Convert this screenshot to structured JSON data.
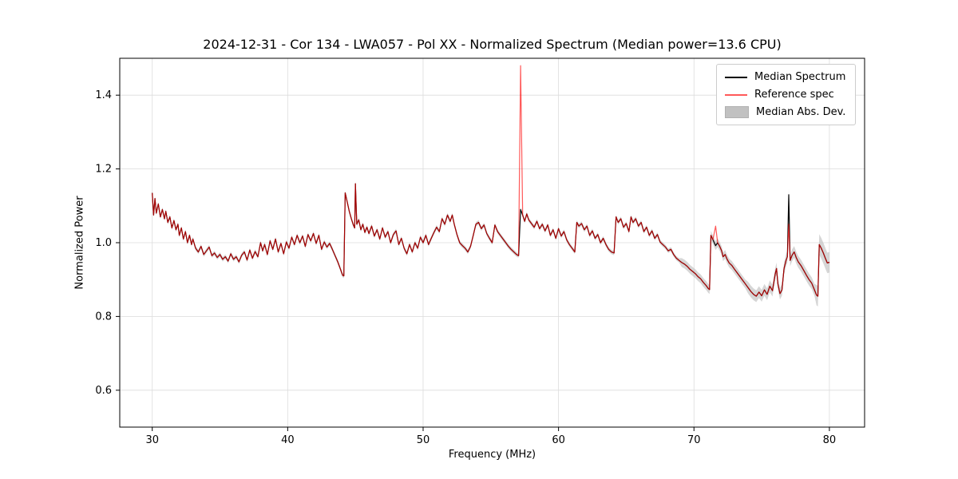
{
  "chart_data": {
    "type": "line",
    "title": "2024-12-31 - Cor 134 - LWA057 - Pol XX - Normalized Spectrum (Median power=13.6 CPU)",
    "xlabel": "Frequency (MHz)",
    "ylabel": "Normalized Power",
    "xlim": [
      27.6,
      82.6
    ],
    "ylim": [
      0.5,
      1.5
    ],
    "xticks": [
      30,
      40,
      50,
      60,
      70,
      80
    ],
    "yticks": [
      0.6,
      0.8,
      1.0,
      1.2,
      1.4
    ],
    "grid": true,
    "legend_position": "upper right",
    "colors": {
      "median": "#000000",
      "reference": "#ff0000",
      "reference_opacity": 0.65,
      "band": "#bbbbbb",
      "band_opacity": 0.6,
      "grid": "#dcdcdc",
      "frame": "#000000"
    },
    "series": [
      {
        "name": "Median Spectrum",
        "color": "#000000",
        "points": [
          [
            30.0,
            1.135
          ],
          [
            30.1,
            1.075
          ],
          [
            30.2,
            1.12
          ],
          [
            30.3,
            1.08
          ],
          [
            30.45,
            1.105
          ],
          [
            30.6,
            1.07
          ],
          [
            30.75,
            1.09
          ],
          [
            30.9,
            1.065
          ],
          [
            31.0,
            1.085
          ],
          [
            31.15,
            1.055
          ],
          [
            31.3,
            1.07
          ],
          [
            31.45,
            1.04
          ],
          [
            31.6,
            1.06
          ],
          [
            31.75,
            1.035
          ],
          [
            31.9,
            1.05
          ],
          [
            32.0,
            1.02
          ],
          [
            32.15,
            1.04
          ],
          [
            32.3,
            1.01
          ],
          [
            32.45,
            1.03
          ],
          [
            32.6,
            1.0
          ],
          [
            32.75,
            1.02
          ],
          [
            32.9,
            0.995
          ],
          [
            33.0,
            1.01
          ],
          [
            33.2,
            0.985
          ],
          [
            33.4,
            0.975
          ],
          [
            33.6,
            0.99
          ],
          [
            33.8,
            0.968
          ],
          [
            34.0,
            0.978
          ],
          [
            34.2,
            0.988
          ],
          [
            34.4,
            0.965
          ],
          [
            34.6,
            0.972
          ],
          [
            34.8,
            0.96
          ],
          [
            35.0,
            0.968
          ],
          [
            35.2,
            0.955
          ],
          [
            35.4,
            0.962
          ],
          [
            35.6,
            0.95
          ],
          [
            35.8,
            0.97
          ],
          [
            36.0,
            0.955
          ],
          [
            36.2,
            0.962
          ],
          [
            36.4,
            0.948
          ],
          [
            36.6,
            0.966
          ],
          [
            36.8,
            0.975
          ],
          [
            37.0,
            0.953
          ],
          [
            37.2,
            0.98
          ],
          [
            37.4,
            0.958
          ],
          [
            37.6,
            0.976
          ],
          [
            37.8,
            0.962
          ],
          [
            38.0,
            1.0
          ],
          [
            38.15,
            0.978
          ],
          [
            38.3,
            0.995
          ],
          [
            38.5,
            0.968
          ],
          [
            38.7,
            1.005
          ],
          [
            38.9,
            0.982
          ],
          [
            39.1,
            1.01
          ],
          [
            39.3,
            0.975
          ],
          [
            39.5,
            0.998
          ],
          [
            39.7,
            0.97
          ],
          [
            39.9,
            1.002
          ],
          [
            40.1,
            0.985
          ],
          [
            40.3,
            1.015
          ],
          [
            40.5,
            0.995
          ],
          [
            40.7,
            1.02
          ],
          [
            40.9,
            1.0
          ],
          [
            41.1,
            1.018
          ],
          [
            41.3,
            0.99
          ],
          [
            41.5,
            1.022
          ],
          [
            41.7,
            1.005
          ],
          [
            41.9,
            1.025
          ],
          [
            42.1,
            0.998
          ],
          [
            42.3,
            1.02
          ],
          [
            42.5,
            0.982
          ],
          [
            42.7,
            1.002
          ],
          [
            42.9,
            0.988
          ],
          [
            43.1,
            0.998
          ],
          [
            43.3,
            0.982
          ],
          [
            43.5,
            0.965
          ],
          [
            43.7,
            0.948
          ],
          [
            43.9,
            0.928
          ],
          [
            44.05,
            0.912
          ],
          [
            44.15,
            0.91
          ],
          [
            44.25,
            1.135
          ],
          [
            44.4,
            1.11
          ],
          [
            44.55,
            1.085
          ],
          [
            44.7,
            1.065
          ],
          [
            44.85,
            1.048
          ],
          [
            44.95,
            1.04
          ],
          [
            45.0,
            1.16
          ],
          [
            45.1,
            1.05
          ],
          [
            45.25,
            1.062
          ],
          [
            45.4,
            1.035
          ],
          [
            45.55,
            1.05
          ],
          [
            45.7,
            1.028
          ],
          [
            45.85,
            1.042
          ],
          [
            46.0,
            1.025
          ],
          [
            46.2,
            1.045
          ],
          [
            46.4,
            1.018
          ],
          [
            46.6,
            1.035
          ],
          [
            46.8,
            1.01
          ],
          [
            47.0,
            1.04
          ],
          [
            47.2,
            1.015
          ],
          [
            47.4,
            1.03
          ],
          [
            47.6,
            1.0
          ],
          [
            47.8,
            1.022
          ],
          [
            48.0,
            1.032
          ],
          [
            48.2,
            0.995
          ],
          [
            48.4,
            1.012
          ],
          [
            48.6,
            0.985
          ],
          [
            48.8,
            0.97
          ],
          [
            49.0,
            0.995
          ],
          [
            49.2,
            0.975
          ],
          [
            49.4,
            1.0
          ],
          [
            49.6,
            0.985
          ],
          [
            49.8,
            1.015
          ],
          [
            50.0,
            1.0
          ],
          [
            50.2,
            1.02
          ],
          [
            50.4,
            0.995
          ],
          [
            50.6,
            1.012
          ],
          [
            50.8,
            1.028
          ],
          [
            51.0,
            1.042
          ],
          [
            51.2,
            1.03
          ],
          [
            51.4,
            1.065
          ],
          [
            51.6,
            1.05
          ],
          [
            51.8,
            1.075
          ],
          [
            52.0,
            1.058
          ],
          [
            52.15,
            1.075
          ],
          [
            52.3,
            1.05
          ],
          [
            52.5,
            1.022
          ],
          [
            52.7,
            1.0
          ],
          [
            52.9,
            0.992
          ],
          [
            53.1,
            0.985
          ],
          [
            53.3,
            0.975
          ],
          [
            53.5,
            0.99
          ],
          [
            53.7,
            1.02
          ],
          [
            53.9,
            1.05
          ],
          [
            54.1,
            1.055
          ],
          [
            54.3,
            1.038
          ],
          [
            54.5,
            1.048
          ],
          [
            54.7,
            1.025
          ],
          [
            54.9,
            1.012
          ],
          [
            55.1,
            1.0
          ],
          [
            55.3,
            1.048
          ],
          [
            55.5,
            1.03
          ],
          [
            55.7,
            1.02
          ],
          [
            55.9,
            1.01
          ],
          [
            56.1,
            1.0
          ],
          [
            56.3,
            0.99
          ],
          [
            56.5,
            0.982
          ],
          [
            56.7,
            0.975
          ],
          [
            56.9,
            0.968
          ],
          [
            57.05,
            0.965
          ],
          [
            57.2,
            1.09
          ],
          [
            57.35,
            1.075
          ],
          [
            57.5,
            1.058
          ],
          [
            57.65,
            1.078
          ],
          [
            57.8,
            1.062
          ],
          [
            58.0,
            1.052
          ],
          [
            58.2,
            1.042
          ],
          [
            58.4,
            1.058
          ],
          [
            58.6,
            1.038
          ],
          [
            58.8,
            1.05
          ],
          [
            59.0,
            1.032
          ],
          [
            59.2,
            1.048
          ],
          [
            59.4,
            1.02
          ],
          [
            59.6,
            1.035
          ],
          [
            59.8,
            1.012
          ],
          [
            60.0,
            1.038
          ],
          [
            60.2,
            1.018
          ],
          [
            60.4,
            1.03
          ],
          [
            60.6,
            1.008
          ],
          [
            60.8,
            0.995
          ],
          [
            61.0,
            0.985
          ],
          [
            61.2,
            0.975
          ],
          [
            61.35,
            1.055
          ],
          [
            61.5,
            1.045
          ],
          [
            61.7,
            1.052
          ],
          [
            61.9,
            1.035
          ],
          [
            62.1,
            1.045
          ],
          [
            62.3,
            1.02
          ],
          [
            62.5,
            1.032
          ],
          [
            62.7,
            1.012
          ],
          [
            62.9,
            1.022
          ],
          [
            63.1,
            1.0
          ],
          [
            63.3,
            1.012
          ],
          [
            63.5,
            0.995
          ],
          [
            63.7,
            0.982
          ],
          [
            63.9,
            0.975
          ],
          [
            64.1,
            0.972
          ],
          [
            64.25,
            1.07
          ],
          [
            64.4,
            1.055
          ],
          [
            64.6,
            1.065
          ],
          [
            64.8,
            1.042
          ],
          [
            65.0,
            1.052
          ],
          [
            65.2,
            1.03
          ],
          [
            65.35,
            1.07
          ],
          [
            65.5,
            1.055
          ],
          [
            65.7,
            1.065
          ],
          [
            65.9,
            1.045
          ],
          [
            66.1,
            1.055
          ],
          [
            66.3,
            1.03
          ],
          [
            66.5,
            1.042
          ],
          [
            66.7,
            1.02
          ],
          [
            66.9,
            1.032
          ],
          [
            67.1,
            1.012
          ],
          [
            67.3,
            1.022
          ],
          [
            67.5,
            1.002
          ],
          [
            67.7,
            0.995
          ],
          [
            67.9,
            0.988
          ],
          [
            68.1,
            0.978
          ],
          [
            68.3,
            0.982
          ],
          [
            68.5,
            0.968
          ],
          [
            68.7,
            0.958
          ],
          [
            68.9,
            0.952
          ],
          [
            69.1,
            0.946
          ],
          [
            69.3,
            0.942
          ],
          [
            69.5,
            0.936
          ],
          [
            69.7,
            0.928
          ],
          [
            69.9,
            0.922
          ],
          [
            70.1,
            0.916
          ],
          [
            70.3,
            0.908
          ],
          [
            70.5,
            0.902
          ],
          [
            70.7,
            0.892
          ],
          [
            70.9,
            0.884
          ],
          [
            71.05,
            0.876
          ],
          [
            71.15,
            0.873
          ],
          [
            71.25,
            1.02
          ],
          [
            71.4,
            1.008
          ],
          [
            71.6,
            0.992
          ],
          [
            71.75,
            1.0
          ],
          [
            71.9,
            0.99
          ],
          [
            72.05,
            0.978
          ],
          [
            72.15,
            0.962
          ],
          [
            72.3,
            0.968
          ],
          [
            72.45,
            0.955
          ],
          [
            72.6,
            0.945
          ],
          [
            72.8,
            0.938
          ],
          [
            73.0,
            0.928
          ],
          [
            73.2,
            0.918
          ],
          [
            73.4,
            0.908
          ],
          [
            73.6,
            0.898
          ],
          [
            73.8,
            0.888
          ],
          [
            74.0,
            0.878
          ],
          [
            74.2,
            0.868
          ],
          [
            74.4,
            0.86
          ],
          [
            74.6,
            0.855
          ],
          [
            74.8,
            0.866
          ],
          [
            75.0,
            0.856
          ],
          [
            75.2,
            0.872
          ],
          [
            75.4,
            0.86
          ],
          [
            75.6,
            0.882
          ],
          [
            75.8,
            0.87
          ],
          [
            76.0,
            0.915
          ],
          [
            76.1,
            0.93
          ],
          [
            76.2,
            0.888
          ],
          [
            76.35,
            0.862
          ],
          [
            76.5,
            0.872
          ],
          [
            76.65,
            0.93
          ],
          [
            76.8,
            0.952
          ],
          [
            76.9,
            0.962
          ],
          [
            77.0,
            1.13
          ],
          [
            77.1,
            0.952
          ],
          [
            77.25,
            0.966
          ],
          [
            77.4,
            0.975
          ],
          [
            77.55,
            0.96
          ],
          [
            77.7,
            0.948
          ],
          [
            77.9,
            0.938
          ],
          [
            78.1,
            0.925
          ],
          [
            78.3,
            0.912
          ],
          [
            78.5,
            0.9
          ],
          [
            78.7,
            0.89
          ],
          [
            78.9,
            0.872
          ],
          [
            79.05,
            0.858
          ],
          [
            79.15,
            0.855
          ],
          [
            79.25,
            0.995
          ],
          [
            79.4,
            0.985
          ],
          [
            79.55,
            0.972
          ],
          [
            79.7,
            0.958
          ],
          [
            79.85,
            0.945
          ],
          [
            80.0,
            0.947
          ]
        ]
      },
      {
        "name": "Reference spec",
        "color": "#ff0000",
        "opacity": 0.65,
        "same_as_median_except": [
          [
            57.2,
            1.48
          ],
          [
            71.6,
            1.045
          ],
          [
            77.0,
            1.05
          ]
        ]
      },
      {
        "name": "Median Abs. Dev.",
        "type": "band",
        "color": "#bbbbbb",
        "opacity": 0.6,
        "halfwidth_ranges": [
          [
            27.6,
            69.0,
            0.006
          ],
          [
            69.0,
            74.0,
            0.012
          ],
          [
            74.0,
            79.0,
            0.016
          ],
          [
            79.0,
            82.6,
            0.028
          ]
        ]
      }
    ]
  }
}
